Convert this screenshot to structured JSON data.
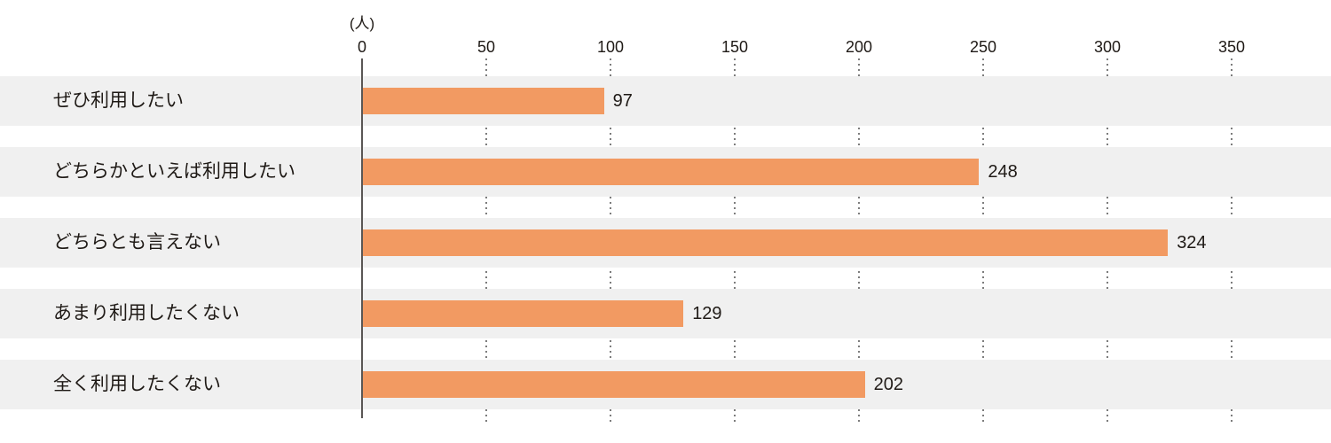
{
  "chart_data": {
    "type": "bar",
    "orientation": "horizontal",
    "title": "",
    "unit_label": "(人)",
    "categories": [
      "ぜひ利用したい",
      "どちらかといえば利用したい",
      "どちらとも言えない",
      "あまり利用したくない",
      "全く利用したくない"
    ],
    "values": [
      97,
      248,
      324,
      129,
      202
    ],
    "value_labels": [
      "97",
      "248",
      "324",
      "129",
      "202"
    ],
    "xlim": [
      0,
      350
    ],
    "ticks": [
      0,
      50,
      100,
      150,
      200,
      250,
      300,
      350
    ],
    "tick_labels": [
      "0",
      "50",
      "100",
      "150",
      "200",
      "250",
      "300",
      "350"
    ],
    "grid": "dotted-vertical",
    "legend": "none",
    "colors": {
      "bar": "#f29a62",
      "row_band": "#f0f0f0",
      "axis_line": "#5a5755",
      "grid_dot": "#7c7c7c",
      "text": "#1f1a16",
      "background": "#ffffff"
    }
  }
}
